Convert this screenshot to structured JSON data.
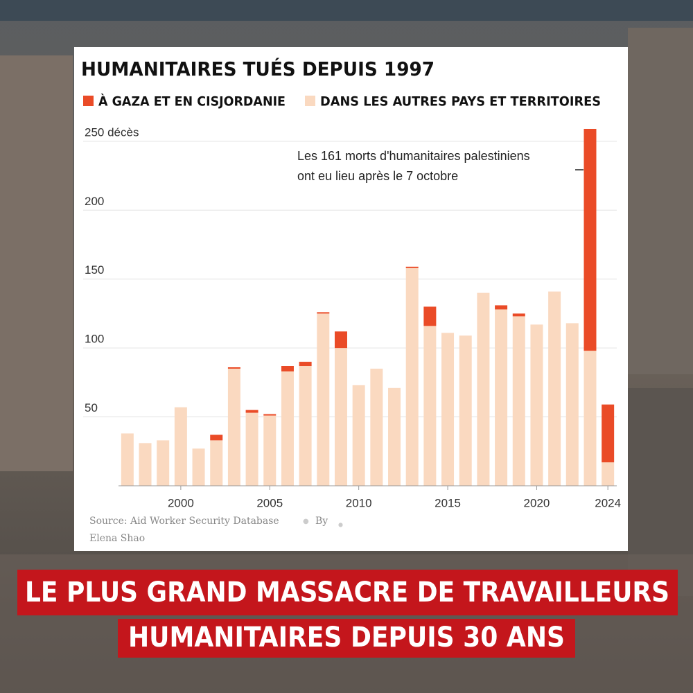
{
  "chart_data": {
    "type": "stacked-bar",
    "title": "HUMANITAIRES TUÉS DEPUIS 1997",
    "x": [
      1997,
      1998,
      1999,
      2000,
      2001,
      2002,
      2003,
      2004,
      2005,
      2006,
      2007,
      2008,
      2009,
      2010,
      2011,
      2012,
      2013,
      2014,
      2015,
      2016,
      2017,
      2018,
      2019,
      2020,
      2021,
      2022,
      2023,
      2024
    ],
    "series": [
      {
        "name": "DANS LES AUTRES PAYS ET TERRITOIRES",
        "color": "#fad9c0",
        "values": [
          38,
          31,
          33,
          57,
          27,
          33,
          85,
          53,
          51,
          83,
          87,
          125,
          100,
          73,
          85,
          71,
          158,
          116,
          111,
          109,
          140,
          128,
          123,
          117,
          141,
          118,
          98,
          17
        ]
      },
      {
        "name": "À GAZA ET EN CISJORDANIE",
        "color": "#ea4b27",
        "values": [
          0,
          0,
          0,
          0,
          0,
          4,
          1,
          2,
          1,
          4,
          3,
          1,
          12,
          0,
          0,
          0,
          1,
          14,
          0,
          0,
          0,
          3,
          2,
          0,
          0,
          0,
          161,
          42
        ]
      }
    ],
    "xlim": [
      1996.5,
      2024.5
    ],
    "xticks": [
      2000,
      2005,
      2010,
      2015,
      2020,
      2024
    ],
    "ylim": [
      0,
      260
    ],
    "yticks": [
      50,
      100,
      150,
      200,
      {
        "value": 250,
        "label": "250 décès"
      }
    ],
    "grid": true,
    "annotation": [
      "Les 161 morts d'humanitaires palestiniens",
      "ont eu lieu après le 7 octobre"
    ],
    "source": "Source: Aid Worker Security Database",
    "byline": "By",
    "author": "Elena Shao"
  },
  "banner": {
    "lines": [
      "LE PLUS GRAND MASSACRE DE TRAVAILLEURS",
      "HUMANITAIRES DEPUIS 30 ANS"
    ]
  }
}
